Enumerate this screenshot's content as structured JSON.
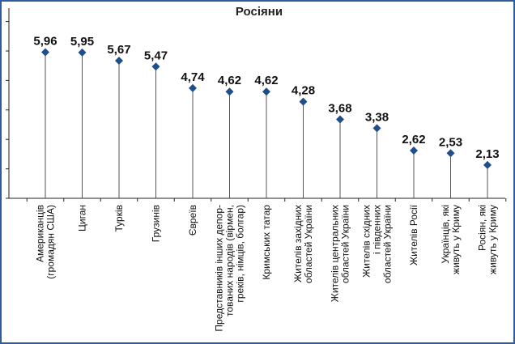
{
  "chart_data": {
    "type": "scatter",
    "title": "Росіяни",
    "categories": [
      [
        "Американців",
        "(громадян США)"
      ],
      [
        "Циган"
      ],
      [
        "Турків"
      ],
      [
        "Грузинів"
      ],
      [
        "Євреїв"
      ],
      [
        "Представників інших депор-",
        "тованих народів (вірмен,",
        "греків, німців, болгар)"
      ],
      [
        "Кримських татар"
      ],
      [
        "Жителів західних",
        "областей України"
      ],
      [
        "Жителів центральних",
        "областей України"
      ],
      [
        "Жителів східних",
        "і південних",
        "областей України"
      ],
      [
        "Жителів Росії"
      ],
      [
        "Українців, які",
        "живуть у Криму"
      ],
      [
        "Росіян, які",
        "живуть у Криму"
      ]
    ],
    "values": [
      5.96,
      5.95,
      5.67,
      5.47,
      4.74,
      4.62,
      4.62,
      4.28,
      3.68,
      3.38,
      2.62,
      2.53,
      2.13
    ],
    "value_labels": [
      "5,96",
      "5,95",
      "5,67",
      "5,47",
      "4,74",
      "4,62",
      "4,62",
      "4,28",
      "3,68",
      "3,38",
      "2,62",
      "2,53",
      "2,13"
    ],
    "ylim": [
      1,
      7
    ],
    "marker_color": "#1f4e8c",
    "stem_color": "#555555"
  }
}
